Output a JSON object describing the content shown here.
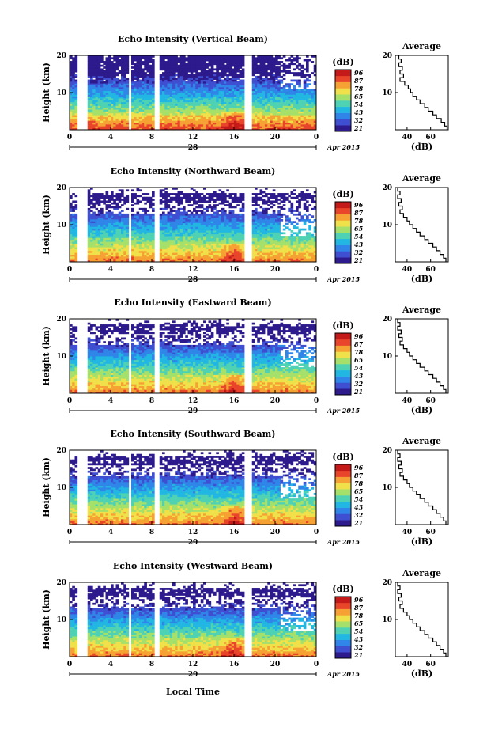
{
  "figure": {
    "x_label": "Local Time",
    "date_label": "Apr 2015",
    "average_title": "Average",
    "unit_label": "(dB)",
    "avg_xlabel": "(dB)",
    "colorbar_ticks": [
      "96",
      "87",
      "78",
      "65",
      "54",
      "43",
      "32",
      "21"
    ],
    "colors": [
      "#2d1a8c",
      "#3f4fd1",
      "#2f86e8",
      "#22b7e2",
      "#4fd2b4",
      "#a5e06a",
      "#f0e04a",
      "#f6a133",
      "#e8452a",
      "#c41a1a"
    ]
  },
  "chart_data": [
    {
      "type": "heatmap",
      "title": "Echo Intensity (Vertical Beam)",
      "ylabel": "Height (km)",
      "x_ticks": [
        "0",
        "4",
        "8",
        "12",
        "16",
        "20",
        "0"
      ],
      "y_ticks": [
        "20",
        "10"
      ],
      "day_label": "28",
      "xlim": [
        0,
        24
      ],
      "ylim": [
        0,
        20
      ],
      "gaps_hours": [
        [
          0.8,
          1.8
        ],
        [
          5.7,
          6.1
        ],
        [
          8.3,
          8.8
        ],
        [
          17.0,
          17.7
        ]
      ],
      "avg_xticks": [
        "40",
        "60"
      ],
      "avg_xlim": [
        30,
        75
      ],
      "avg_profile": {
        "height_km": [
          20,
          19,
          18,
          17,
          16,
          15,
          14,
          13,
          12,
          11,
          10,
          9,
          8,
          7,
          6,
          5,
          4,
          3,
          2,
          1
        ],
        "value_db": [
          33,
          35,
          33,
          36,
          34,
          37,
          34,
          38,
          41,
          43,
          45,
          48,
          51,
          55,
          58,
          62,
          65,
          69,
          72,
          74
        ]
      }
    },
    {
      "type": "heatmap",
      "title": "Echo Intensity (Northward Beam)",
      "ylabel": "Height (km)",
      "x_ticks": [
        "0",
        "4",
        "8",
        "12",
        "16",
        "20",
        "0"
      ],
      "y_ticks": [
        "20",
        "10"
      ],
      "day_label": "28",
      "xlim": [
        0,
        24
      ],
      "ylim": [
        0,
        20
      ],
      "gaps_hours": [
        [
          0.8,
          1.8
        ],
        [
          5.7,
          6.1
        ],
        [
          8.3,
          8.8
        ],
        [
          17.0,
          17.7
        ]
      ],
      "avg_xticks": [
        "40",
        "60"
      ],
      "avg_xlim": [
        30,
        75
      ],
      "avg_profile": {
        "height_km": [
          20,
          19,
          18,
          17,
          16,
          15,
          14,
          13,
          12,
          11,
          10,
          9,
          8,
          7,
          6,
          5,
          4,
          3,
          2,
          1
        ],
        "value_db": [
          32,
          34,
          32,
          35,
          33,
          36,
          34,
          37,
          40,
          42,
          45,
          48,
          51,
          55,
          58,
          62,
          65,
          68,
          71,
          73
        ]
      }
    },
    {
      "type": "heatmap",
      "title": "Echo Intensity (Eastward Beam)",
      "ylabel": "Height (km)",
      "x_ticks": [
        "0",
        "4",
        "8",
        "12",
        "16",
        "20",
        "0"
      ],
      "y_ticks": [
        "20",
        "10"
      ],
      "day_label": "29",
      "xlim": [
        0,
        24
      ],
      "ylim": [
        0,
        20
      ],
      "gaps_hours": [
        [
          0.8,
          1.8
        ],
        [
          5.7,
          6.1
        ],
        [
          8.3,
          8.8
        ],
        [
          17.0,
          17.7
        ]
      ],
      "avg_xticks": [
        "40",
        "60"
      ],
      "avg_xlim": [
        30,
        75
      ],
      "avg_profile": {
        "height_km": [
          20,
          19,
          18,
          17,
          16,
          15,
          14,
          13,
          12,
          11,
          10,
          9,
          8,
          7,
          6,
          5,
          4,
          3,
          2,
          1
        ],
        "value_db": [
          32,
          34,
          32,
          35,
          33,
          36,
          34,
          37,
          40,
          42,
          45,
          48,
          51,
          55,
          58,
          62,
          65,
          68,
          71,
          73
        ]
      }
    },
    {
      "type": "heatmap",
      "title": "Echo Intensity (Southward Beam)",
      "ylabel": "Height (km)",
      "x_ticks": [
        "0",
        "4",
        "8",
        "12",
        "16",
        "20",
        "0"
      ],
      "y_ticks": [
        "20",
        "10"
      ],
      "day_label": "29",
      "xlim": [
        0,
        24
      ],
      "ylim": [
        0,
        20
      ],
      "gaps_hours": [
        [
          0.8,
          1.8
        ],
        [
          5.7,
          6.1
        ],
        [
          8.3,
          8.8
        ],
        [
          17.0,
          17.7
        ]
      ],
      "avg_xticks": [
        "40",
        "60"
      ],
      "avg_xlim": [
        30,
        75
      ],
      "avg_profile": {
        "height_km": [
          20,
          19,
          18,
          17,
          16,
          15,
          14,
          13,
          12,
          11,
          10,
          9,
          8,
          7,
          6,
          5,
          4,
          3,
          2,
          1
        ],
        "value_db": [
          32,
          34,
          32,
          35,
          33,
          36,
          34,
          37,
          40,
          42,
          45,
          48,
          51,
          55,
          58,
          62,
          65,
          68,
          71,
          73
        ]
      }
    },
    {
      "type": "heatmap",
      "title": "Echo Intensity (Westward Beam)",
      "ylabel": "Height (km)",
      "x_ticks": [
        "0",
        "4",
        "8",
        "12",
        "16",
        "20",
        "0"
      ],
      "y_ticks": [
        "20",
        "10"
      ],
      "day_label": "29",
      "xlim": [
        0,
        24
      ],
      "ylim": [
        0,
        20
      ],
      "gaps_hours": [
        [
          0.8,
          1.8
        ],
        [
          5.7,
          6.1
        ],
        [
          8.3,
          8.8
        ],
        [
          17.0,
          17.7
        ]
      ],
      "avg_xticks": [
        "40",
        "60"
      ],
      "avg_xlim": [
        30,
        75
      ],
      "avg_profile": {
        "height_km": [
          20,
          19,
          18,
          17,
          16,
          15,
          14,
          13,
          12,
          11,
          10,
          9,
          8,
          7,
          6,
          5,
          4,
          3,
          2,
          1
        ],
        "value_db": [
          32,
          34,
          32,
          35,
          33,
          36,
          34,
          37,
          40,
          42,
          45,
          48,
          51,
          55,
          58,
          62,
          65,
          68,
          71,
          73
        ]
      }
    }
  ]
}
